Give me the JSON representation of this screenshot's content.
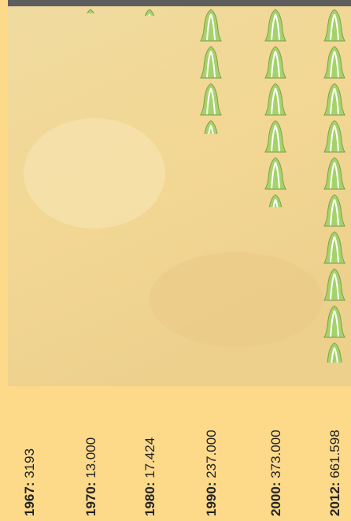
{
  "chart_data": {
    "type": "pictogram",
    "categories": [
      "1967:",
      "1970:",
      "1980:",
      "1990:",
      "2000:",
      "2012:"
    ],
    "values": [
      3193,
      13000,
      17424,
      237000,
      373000,
      661598
    ],
    "value_labels": [
      "3193",
      "13.000",
      "17.424",
      "237.000",
      "373.000",
      "661.598"
    ],
    "color": "#a6d26a"
  }
}
